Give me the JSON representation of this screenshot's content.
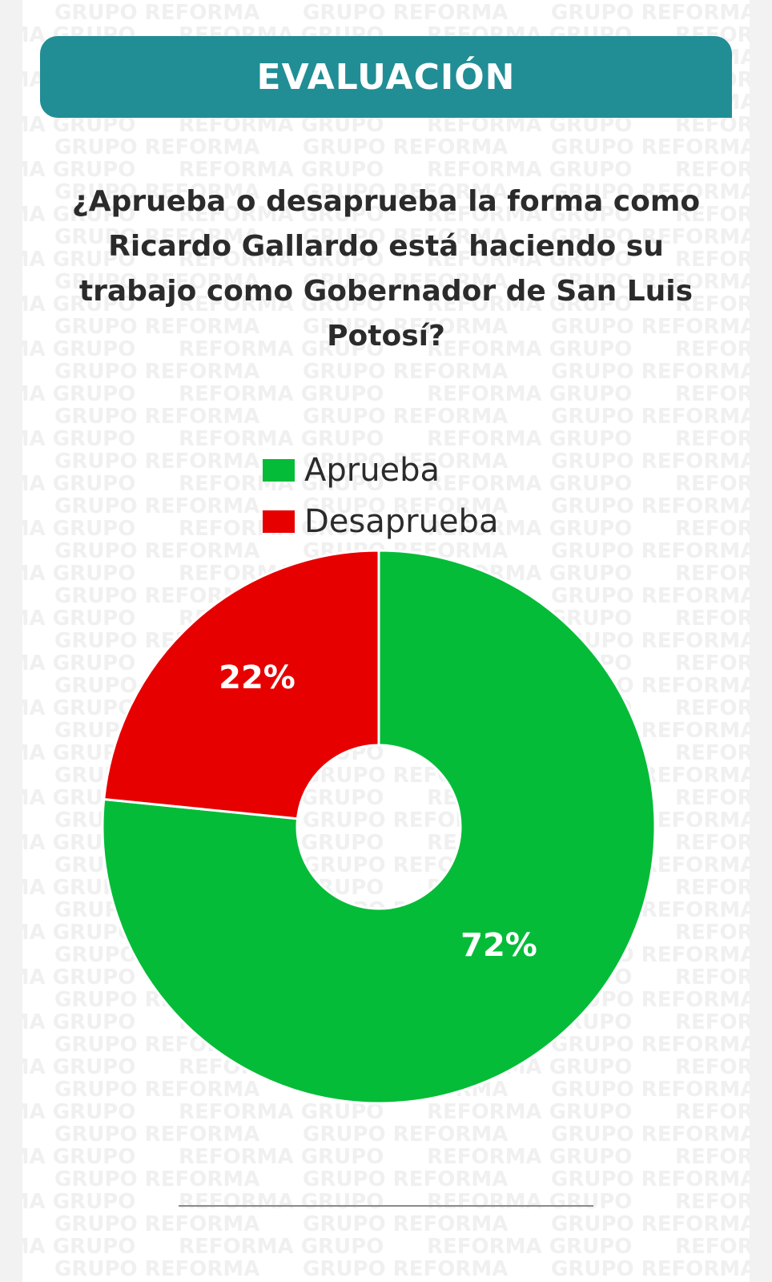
{
  "header": {
    "title": "EVALUACIÓN",
    "color": "#218e95"
  },
  "question": "¿Aprueba o desaprueba la forma como Ricardo Gallardo está haciendo su trabajo como Gobernador de San Luis Potosí?",
  "watermark": {
    "text_a": "GRUPO REFORMA",
    "text_b": "REFORMA GRUPO"
  },
  "chart_data": {
    "type": "pie",
    "donut": true,
    "title": "",
    "legend_placement": "top",
    "slices": [
      {
        "name": "Aprueba",
        "value": 72,
        "label": "72%",
        "color": "#05bc38"
      },
      {
        "name": "Desaprueba",
        "value": 22,
        "label": "22%",
        "color": "#e70000"
      }
    ]
  }
}
